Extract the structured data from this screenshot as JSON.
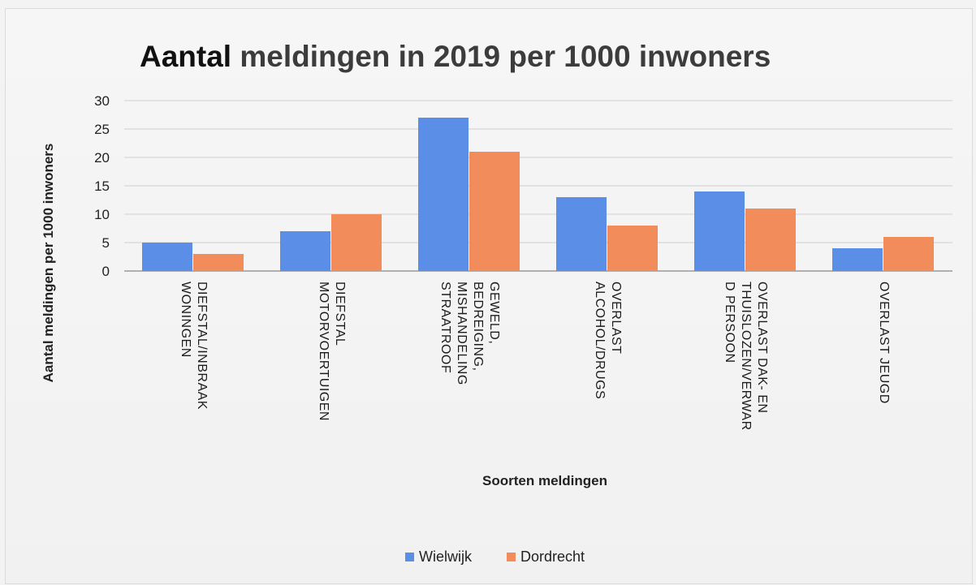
{
  "chart_data": {
    "type": "bar",
    "title_part1": "Aantal",
    "title_part2": " meldingen in 2019 per 1000 inwoners",
    "xlabel": "Soorten meldingen",
    "ylabel": "Aantal meldingen per 1000 inwoners",
    "ylim": [
      0,
      30
    ],
    "yticks": [
      0,
      5,
      10,
      15,
      20,
      25,
      30
    ],
    "grid": true,
    "legend_position": "bottom",
    "categories": [
      [
        "DIEFSTAL/INBRAAK",
        "WONINGEN"
      ],
      [
        "DIEFSTAL",
        "MOTORVOERTUIGEN"
      ],
      [
        "GEWELD,",
        "BEDREIGING,",
        "MISHANDELING",
        "STRAATROOF"
      ],
      [
        "OVERLAST",
        "ALCOHOL/DRUGS"
      ],
      [
        "OVERLAST DAK- EN",
        "THUISLOZEN/VERWAR",
        "D PERSOON"
      ],
      [
        "OVERLAST JEUGD"
      ]
    ],
    "series": [
      {
        "name": "Wielwijk",
        "color": "#5b8ee6",
        "values": [
          5,
          7,
          27,
          13,
          14,
          4
        ]
      },
      {
        "name": "Dordrecht",
        "color": "#f28c5a",
        "values": [
          3,
          10,
          21,
          8,
          11,
          6
        ]
      }
    ]
  }
}
